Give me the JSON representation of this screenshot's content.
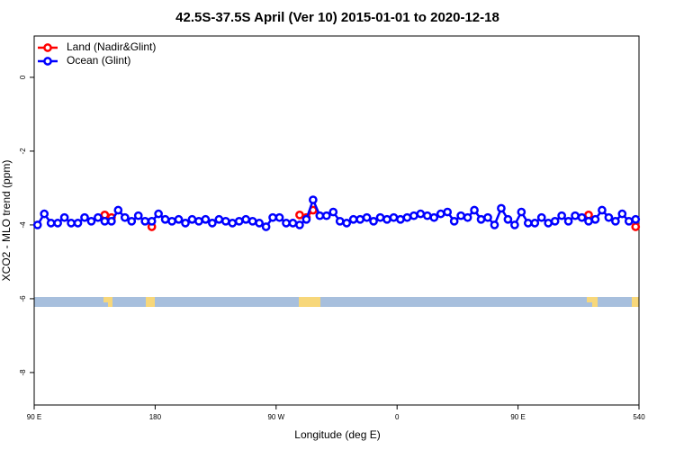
{
  "chart_data": {
    "type": "line",
    "title": "42.5S-37.5S April (Ver 10)   2015-01-01 to 2020-12-18",
    "xlabel": "Longitude (deg E)",
    "ylabel": "XCO2 - MLO trend (ppm)",
    "xlim": [
      90,
      540
    ],
    "ylim": [
      -8.88,
      1.12
    ],
    "xticks": [
      {
        "value": 90,
        "label": "90 E"
      },
      180,
      {
        "value": 270,
        "label": "90 W"
      },
      {
        "value": 360,
        "label": "0"
      },
      {
        "value": 450,
        "label": "90 E"
      },
      540
    ],
    "yticks": [
      0,
      -2,
      -4,
      -6,
      -8
    ],
    "legend": "top-left",
    "x": [
      92.5,
      97.5,
      102.5,
      107.5,
      112.5,
      117.5,
      122.5,
      127.5,
      132.5,
      137.5,
      142.5,
      147.5,
      152.5,
      157.5,
      162.5,
      167.5,
      172.5,
      177.5,
      182.5,
      187.5,
      192.5,
      197.5,
      202.5,
      207.5,
      212.5,
      217.5,
      222.5,
      227.5,
      232.5,
      237.5,
      242.5,
      247.5,
      252.5,
      257.5,
      262.5,
      267.5,
      272.5,
      277.5,
      282.5,
      287.5,
      292.5,
      297.5,
      302.5,
      307.5,
      312.5,
      317.5,
      322.5,
      327.5,
      332.5,
      337.5,
      342.5,
      347.5,
      352.5,
      357.5,
      362.5,
      367.5,
      372.5,
      377.5,
      382.5,
      387.5,
      392.5,
      397.5,
      402.5,
      407.5,
      412.5,
      417.5,
      422.5,
      427.5,
      432.5,
      437.5,
      442.5,
      447.5,
      452.5,
      457.5,
      462.5,
      467.5,
      472.5,
      477.5,
      482.5,
      487.5,
      492.5,
      497.5,
      502.5,
      507.5,
      512.5,
      517.5,
      522.5,
      527.5,
      532.5,
      537.5
    ],
    "series": [
      {
        "name": "Land (Nadir&Glint)",
        "color": "#ff0000",
        "values": [
          null,
          null,
          null,
          null,
          null,
          null,
          null,
          null,
          null,
          null,
          -3.73,
          -3.8,
          null,
          null,
          null,
          null,
          null,
          -4.05,
          null,
          null,
          null,
          null,
          null,
          null,
          null,
          null,
          null,
          null,
          null,
          null,
          null,
          null,
          null,
          null,
          null,
          null,
          null,
          null,
          null,
          -3.73,
          -3.8,
          -3.6,
          null,
          null,
          null,
          null,
          null,
          null,
          null,
          null,
          null,
          null,
          null,
          null,
          null,
          null,
          null,
          null,
          null,
          null,
          null,
          null,
          null,
          null,
          null,
          null,
          null,
          null,
          null,
          null,
          null,
          null,
          null,
          null,
          null,
          null,
          null,
          null,
          null,
          null,
          null,
          null,
          -3.73,
          null,
          null,
          null,
          null,
          null,
          null,
          -4.05
        ]
      },
      {
        "name": "Ocean (Glint)",
        "color": "#0000ff",
        "values": [
          -4.0,
          -3.7,
          -3.95,
          -3.95,
          -3.8,
          -3.95,
          -3.95,
          -3.8,
          -3.9,
          -3.8,
          -3.9,
          -3.9,
          -3.6,
          -3.8,
          -3.9,
          -3.75,
          -3.9,
          -3.9,
          -3.7,
          -3.85,
          -3.9,
          -3.85,
          -3.95,
          -3.85,
          -3.9,
          -3.85,
          -3.95,
          -3.85,
          -3.9,
          -3.95,
          -3.9,
          -3.85,
          -3.9,
          -3.95,
          -4.05,
          -3.8,
          -3.8,
          -3.95,
          -3.95,
          -4.0,
          -3.85,
          -3.32,
          -3.75,
          -3.75,
          -3.65,
          -3.9,
          -3.95,
          -3.85,
          -3.85,
          -3.8,
          -3.9,
          -3.8,
          -3.85,
          -3.8,
          -3.85,
          -3.8,
          -3.75,
          -3.7,
          -3.75,
          -3.8,
          -3.7,
          -3.65,
          -3.9,
          -3.75,
          -3.8,
          -3.6,
          -3.85,
          -3.8,
          -4.0,
          -3.55,
          -3.85,
          -4.0,
          -3.65,
          -3.95,
          -3.95,
          -3.8,
          -3.95,
          -3.9,
          -3.75,
          -3.9,
          -3.75,
          -3.8,
          -3.9,
          -3.85,
          -3.6,
          -3.8,
          -3.9,
          -3.7,
          -3.9,
          -3.85
        ]
      }
    ]
  }
}
